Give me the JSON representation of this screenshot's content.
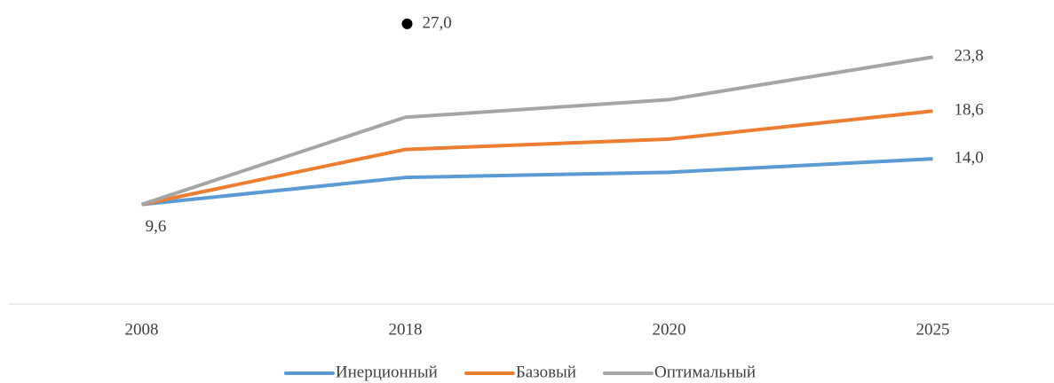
{
  "chart_data": {
    "type": "line",
    "categories": [
      "2008",
      "2018",
      "2020",
      "2025"
    ],
    "series": [
      {
        "name": "Инерционный",
        "color": "#5b9bd5",
        "values": [
          9.6,
          12.2,
          12.7,
          14.0
        ],
        "value_labels": [
          "9,6",
          null,
          null,
          "14,0"
        ]
      },
      {
        "name": "Базовый",
        "color": "#ed7d31",
        "values": [
          9.6,
          14.9,
          15.9,
          18.6
        ],
        "value_labels": [
          null,
          null,
          null,
          "18,6"
        ]
      },
      {
        "name": "Оптимальный",
        "color": "#a5a5a5",
        "values": [
          9.6,
          18.0,
          19.7,
          23.8
        ],
        "value_labels": [
          null,
          null,
          null,
          "23,8"
        ]
      }
    ],
    "annotation": {
      "category": "2018",
      "value": 27.0,
      "label": "27,0",
      "color": "#000000"
    },
    "ylim": [
      0,
      29.3
    ],
    "legend": "bottom"
  }
}
